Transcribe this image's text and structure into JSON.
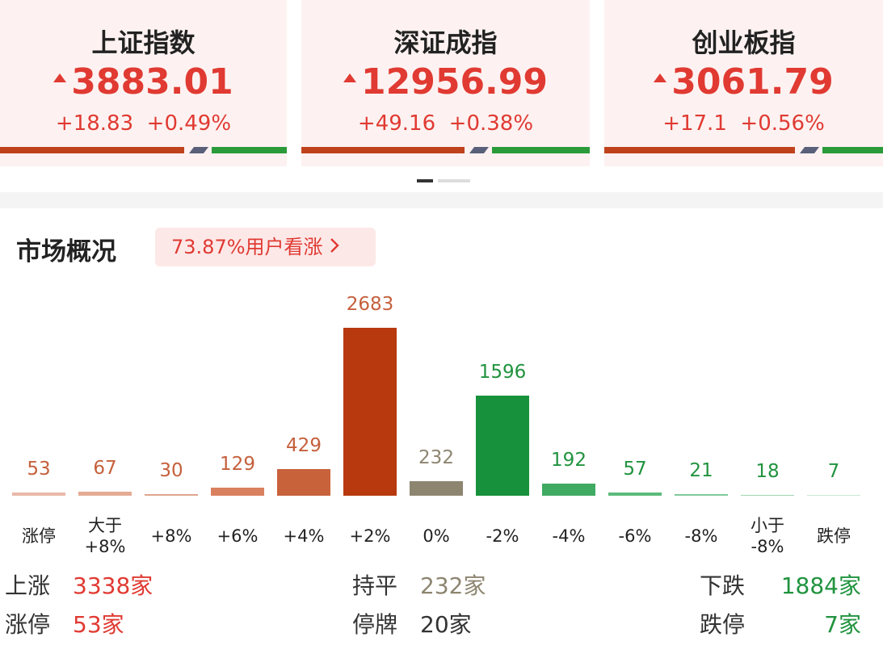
{
  "indices": [
    {
      "name": "上证指数",
      "value": "3883.01",
      "change": "+18.83",
      "pct": "+0.49%"
    },
    {
      "name": "深证成指",
      "value": "12956.99",
      "change": "+49.16",
      "pct": "+0.38%"
    },
    {
      "name": "创业板指",
      "value": "3061.79",
      "change": "+17.1",
      "pct": "+0.56%"
    }
  ],
  "section": {
    "title": "市场概况",
    "badge": "73.87%用户看涨"
  },
  "chart_data": {
    "type": "bar",
    "categories": [
      "涨停",
      "大于\n+8%",
      "+8%",
      "+6%",
      "+4%",
      "+2%",
      "0%",
      "-2%",
      "-4%",
      "-6%",
      "-8%",
      "小于\n-8%",
      "跌停"
    ],
    "values": [
      53,
      67,
      30,
      129,
      429,
      2683,
      232,
      1596,
      192,
      57,
      21,
      18,
      7
    ],
    "colors": [
      "#eab9a8",
      "#e4ab94",
      "#dfa58e",
      "#d9805f",
      "#c8623b",
      "#b8390e",
      "#8d8570",
      "#17913b",
      "#3faa62",
      "#5cba7b",
      "#80c99a",
      "#9fd5b1",
      "#c9e8d2"
    ],
    "label_colors": [
      "#c5603c",
      "#c5603c",
      "#c5603c",
      "#c5603c",
      "#c5603c",
      "#c5603c",
      "#8d8570",
      "#21933f",
      "#21933f",
      "#21933f",
      "#21933f",
      "#21933f",
      "#21933f"
    ]
  },
  "summary": [
    [
      {
        "label": "上涨",
        "value": "3338家"
      },
      {
        "label": "涨停",
        "value": "53家"
      }
    ],
    [
      {
        "label": "持平",
        "value": "232家"
      },
      {
        "label": "停牌",
        "value": "20家"
      }
    ],
    [
      {
        "label": "下跌",
        "value": "1884家"
      },
      {
        "label": "跌停",
        "value": "7家"
      }
    ]
  ]
}
